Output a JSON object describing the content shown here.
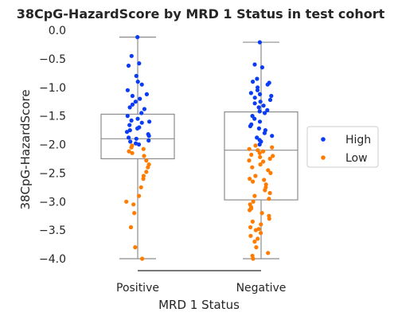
{
  "chart_data": {
    "type": "box",
    "title": "38CpG-HazardScore by MRD 1 Status in test cohort",
    "xlabel": "MRD 1 Status",
    "ylabel": "38CpG-HazardScore",
    "ylim": [
      -4.2,
      0.05
    ],
    "yticks": [
      0.0,
      -0.5,
      -1.0,
      -1.5,
      -2.0,
      -2.5,
      -3.0,
      -3.5,
      -4.0
    ],
    "ytick_labels": [
      "0.0",
      "−0.5",
      "−1.0",
      "−1.5",
      "−2.0",
      "−2.5",
      "−3.0",
      "−3.5",
      "−4.0"
    ],
    "categories": [
      "Positive",
      "Negative"
    ],
    "grid": false,
    "legend_position": "right",
    "boxes": [
      {
        "category": "Positive",
        "whisker_low": -4.0,
        "q1": -2.25,
        "median": -1.9,
        "q3": -1.47,
        "whisker_high": -0.12
      },
      {
        "category": "Negative",
        "whisker_low": -4.0,
        "q1": -2.97,
        "median": -2.1,
        "q3": -1.43,
        "whisker_high": -0.21
      }
    ],
    "series": [
      {
        "name": "High",
        "color": "#0a3cf5",
        "points": [
          [
            "Positive",
            -0.12
          ],
          [
            "Positive",
            -0.58
          ],
          [
            "Positive",
            -0.62
          ],
          [
            "Positive",
            -0.45
          ],
          [
            "Positive",
            -0.8
          ],
          [
            "Positive",
            -0.9
          ],
          [
            "Positive",
            -1.05
          ],
          [
            "Positive",
            -1.12
          ],
          [
            "Positive",
            -1.2
          ],
          [
            "Positive",
            -1.25
          ],
          [
            "Positive",
            -1.3
          ],
          [
            "Positive",
            -1.38
          ],
          [
            "Positive",
            -1.45
          ],
          [
            "Positive",
            -1.5
          ],
          [
            "Positive",
            -1.55
          ],
          [
            "Positive",
            -1.58
          ],
          [
            "Positive",
            -1.62
          ],
          [
            "Positive",
            -1.66
          ],
          [
            "Positive",
            -1.7
          ],
          [
            "Positive",
            -1.72
          ],
          [
            "Positive",
            -1.75
          ],
          [
            "Positive",
            -1.78
          ],
          [
            "Positive",
            -1.82
          ],
          [
            "Positive",
            -1.85
          ],
          [
            "Positive",
            -1.88
          ],
          [
            "Positive",
            -1.9
          ],
          [
            "Positive",
            -1.93
          ],
          [
            "Positive",
            -1.95
          ],
          [
            "Positive",
            -1.98
          ],
          [
            "Positive",
            -2.0
          ],
          [
            "Positive",
            -0.95
          ],
          [
            "Positive",
            -1.15
          ],
          [
            "Positive",
            -1.35
          ],
          [
            "Positive",
            -1.6
          ],
          [
            "Negative",
            -0.21
          ],
          [
            "Negative",
            -0.6
          ],
          [
            "Negative",
            -0.65
          ],
          [
            "Negative",
            -0.85
          ],
          [
            "Negative",
            -0.9
          ],
          [
            "Negative",
            -0.95
          ],
          [
            "Negative",
            -1.0
          ],
          [
            "Negative",
            -1.05
          ],
          [
            "Negative",
            -1.1
          ],
          [
            "Negative",
            -1.15
          ],
          [
            "Negative",
            -1.18
          ],
          [
            "Negative",
            -1.22
          ],
          [
            "Negative",
            -1.25
          ],
          [
            "Negative",
            -1.28
          ],
          [
            "Negative",
            -1.32
          ],
          [
            "Negative",
            -1.35
          ],
          [
            "Negative",
            -1.4
          ],
          [
            "Negative",
            -1.45
          ],
          [
            "Negative",
            -1.5
          ],
          [
            "Negative",
            -1.55
          ],
          [
            "Negative",
            -1.6
          ],
          [
            "Negative",
            -1.65
          ],
          [
            "Negative",
            -1.68
          ],
          [
            "Negative",
            -1.72
          ],
          [
            "Negative",
            -1.75
          ],
          [
            "Negative",
            -1.8
          ],
          [
            "Negative",
            -1.85
          ],
          [
            "Negative",
            -1.88
          ],
          [
            "Negative",
            -1.92
          ],
          [
            "Negative",
            -1.95
          ],
          [
            "Negative",
            -2.0
          ],
          [
            "Negative",
            -0.92
          ],
          [
            "Negative",
            -1.12
          ],
          [
            "Negative",
            -1.42
          ]
        ]
      },
      {
        "name": "Low",
        "color": "#ff7c00",
        "points": [
          [
            "Positive",
            -2.02
          ],
          [
            "Positive",
            -2.05
          ],
          [
            "Positive",
            -2.08
          ],
          [
            "Positive",
            -2.12
          ],
          [
            "Positive",
            -2.15
          ],
          [
            "Positive",
            -2.2
          ],
          [
            "Positive",
            -2.28
          ],
          [
            "Positive",
            -2.35
          ],
          [
            "Positive",
            -2.4
          ],
          [
            "Positive",
            -2.48
          ],
          [
            "Positive",
            -2.55
          ],
          [
            "Positive",
            -2.75
          ],
          [
            "Positive",
            -2.9
          ],
          [
            "Positive",
            -3.0
          ],
          [
            "Positive",
            -3.05
          ],
          [
            "Positive",
            -3.2
          ],
          [
            "Positive",
            -3.45
          ],
          [
            "Positive",
            -3.8
          ],
          [
            "Positive",
            -4.0
          ],
          [
            "Positive",
            -2.6
          ],
          [
            "Negative",
            -2.02
          ],
          [
            "Negative",
            -2.05
          ],
          [
            "Negative",
            -2.08
          ],
          [
            "Negative",
            -2.1
          ],
          [
            "Negative",
            -2.12
          ],
          [
            "Negative",
            -2.15
          ],
          [
            "Negative",
            -2.18
          ],
          [
            "Negative",
            -2.2
          ],
          [
            "Negative",
            -2.22
          ],
          [
            "Negative",
            -2.25
          ],
          [
            "Negative",
            -2.3
          ],
          [
            "Negative",
            -2.35
          ],
          [
            "Negative",
            -2.4
          ],
          [
            "Negative",
            -2.45
          ],
          [
            "Negative",
            -2.5
          ],
          [
            "Negative",
            -2.55
          ],
          [
            "Negative",
            -2.6
          ],
          [
            "Negative",
            -2.65
          ],
          [
            "Negative",
            -2.7
          ],
          [
            "Negative",
            -2.75
          ],
          [
            "Negative",
            -2.8
          ],
          [
            "Negative",
            -2.85
          ],
          [
            "Negative",
            -2.9
          ],
          [
            "Negative",
            -2.95
          ],
          [
            "Negative",
            -3.0
          ],
          [
            "Negative",
            -3.05
          ],
          [
            "Negative",
            -3.1
          ],
          [
            "Negative",
            -3.15
          ],
          [
            "Negative",
            -3.2
          ],
          [
            "Negative",
            -3.25
          ],
          [
            "Negative",
            -3.3
          ],
          [
            "Negative",
            -3.35
          ],
          [
            "Negative",
            -3.4
          ],
          [
            "Negative",
            -3.45
          ],
          [
            "Negative",
            -3.5
          ],
          [
            "Negative",
            -3.55
          ],
          [
            "Negative",
            -3.6
          ],
          [
            "Negative",
            -3.65
          ],
          [
            "Negative",
            -3.7
          ],
          [
            "Negative",
            -3.8
          ],
          [
            "Negative",
            -3.9
          ],
          [
            "Negative",
            -3.95
          ],
          [
            "Negative",
            -4.0
          ],
          [
            "Negative",
            -2.28
          ],
          [
            "Negative",
            -2.62
          ],
          [
            "Negative",
            -3.12
          ],
          [
            "Negative",
            -3.48
          ]
        ]
      }
    ]
  }
}
